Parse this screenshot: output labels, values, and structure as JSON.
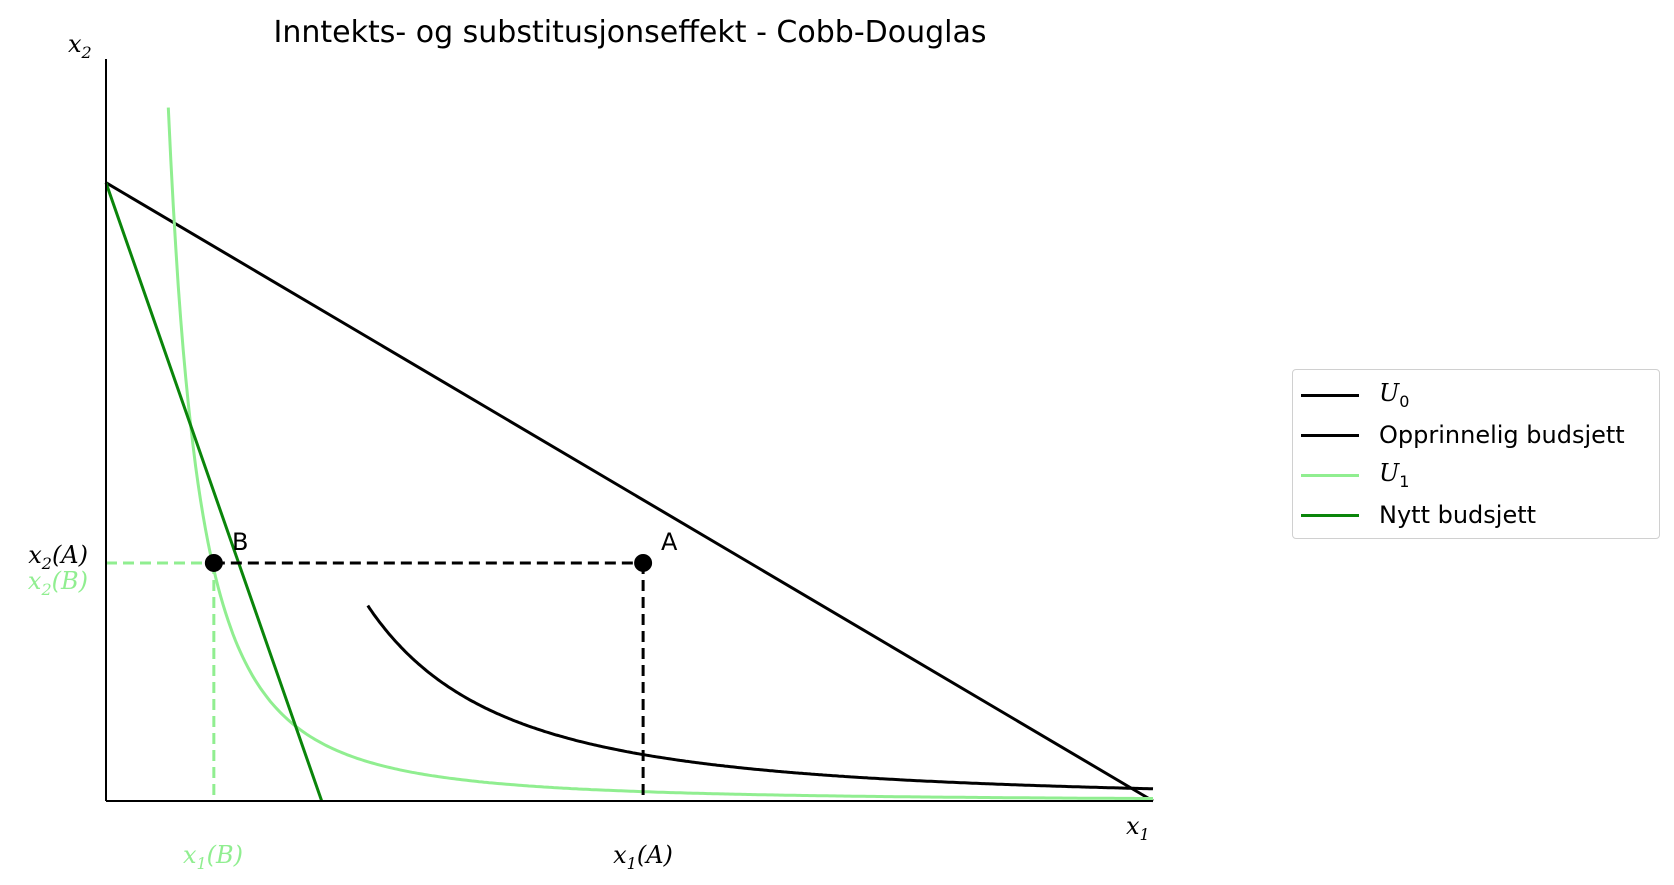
{
  "chart_data": {
    "type": "line",
    "title": "Inntekts- og substitusjonseffekt - Cobb-Douglas",
    "xlabel": {
      "base": "x",
      "sub": "1"
    },
    "ylabel": {
      "base": "x",
      "sub": "2"
    },
    "xlim": [
      0,
      10
    ],
    "ylim": [
      0,
      12
    ],
    "grid": false,
    "legend": {
      "placement": "right, outside axes"
    },
    "tick_labels": {
      "x": [
        {
          "id": "x1B",
          "base": "x",
          "sub": "1",
          "arg": "(B)",
          "value": 1.03,
          "color": "#90ee90"
        },
        {
          "id": "x1A",
          "base": "x",
          "sub": "1",
          "arg": "(A)",
          "value": 5.13,
          "color": "#000000"
        }
      ],
      "y": [
        {
          "id": "x2A",
          "base": "x",
          "sub": "2",
          "arg": "(A)",
          "value": 3.85,
          "color": "#000000"
        },
        {
          "id": "x2B",
          "base": "x",
          "sub": "2",
          "arg": "(B)",
          "value": 3.85,
          "color": "#90ee90"
        }
      ]
    },
    "series": [
      {
        "name": "U0",
        "legend_base": "U",
        "legend_sub": "0",
        "kind": "indifference",
        "k": 19.75,
        "color": "#000000",
        "x_min": 2.5
      },
      {
        "name": "Opprinnelig budsjett",
        "legend_base": "Opprinnelig budsjett",
        "legend_sub": "",
        "kind": "budget",
        "x": [
          0,
          10
        ],
        "y": [
          10,
          0
        ],
        "color": "#000000"
      },
      {
        "name": "U1",
        "legend_base": "U",
        "legend_sub": "1",
        "kind": "indifference",
        "k": 3.97,
        "color": "#90ee90",
        "x_min": 0.5
      },
      {
        "name": "Nytt budsjett",
        "legend_base": "Nytt budsjett",
        "legend_sub": "",
        "kind": "budget",
        "x": [
          0,
          2.06
        ],
        "y": [
          10,
          0
        ],
        "color": "#0a850a"
      }
    ],
    "points": [
      {
        "label": "A",
        "x": 5.13,
        "y": 3.85
      },
      {
        "label": "B",
        "x": 1.03,
        "y": 3.85
      }
    ]
  }
}
